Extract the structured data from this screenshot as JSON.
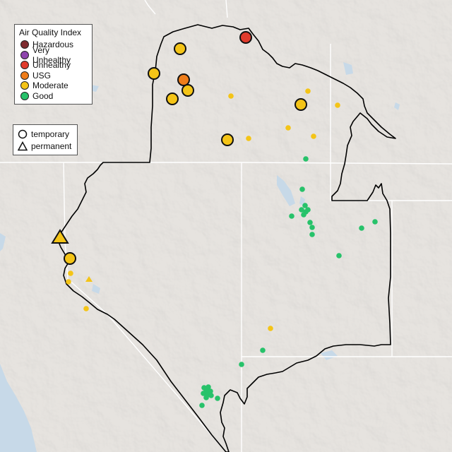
{
  "legend": {
    "title": "Air Quality Index",
    "categories": [
      {
        "label": "Hazardous",
        "color": "#7e2b2f"
      },
      {
        "label": "Very Unhealthy",
        "color": "#8e44ad"
      },
      {
        "label": "Unhealthy",
        "color": "#e03b2c"
      },
      {
        "label": "USG",
        "color": "#ef7d1a"
      },
      {
        "label": "Moderate",
        "color": "#f4c417"
      },
      {
        "label": "Good",
        "color": "#27c26a"
      }
    ]
  },
  "monitor_types": {
    "temporary": "temporary",
    "permanent": "permanent"
  },
  "colors": {
    "land": "#e6e3df",
    "water": "#c7d9e8",
    "boundary": "#000000",
    "state_lines": "#ffffff"
  }
}
